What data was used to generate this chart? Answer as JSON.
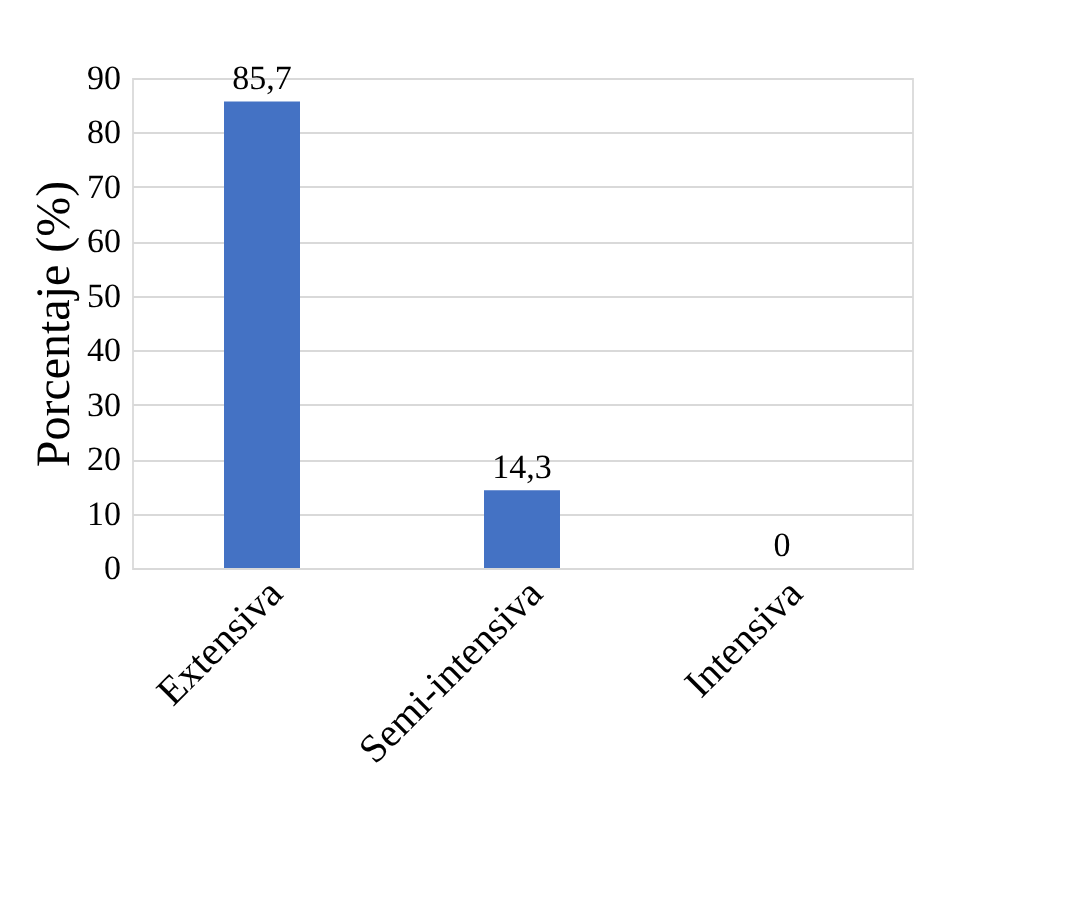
{
  "chart_data": {
    "type": "bar",
    "ylabel": "Porcentaje (%)",
    "categories": [
      "Extensiva",
      "Semi-intensiva",
      "Intensiva"
    ],
    "values": [
      85.7,
      14.3,
      0
    ],
    "color": "#4472c4",
    "value_labels": [
      "85,7",
      "14,3",
      "0"
    ],
    "ylim": [
      0,
      90
    ],
    "yticks": [
      0,
      10,
      20,
      30,
      40,
      50,
      60,
      70,
      80,
      90
    ],
    "grid": "y"
  }
}
